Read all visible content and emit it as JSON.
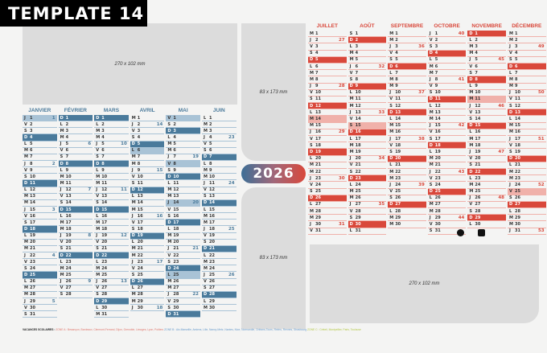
{
  "template_label": "TEMPLATE 14",
  "year": "2026",
  "placeholders": {
    "top_left": "270 x 102 mm",
    "middle_top": "83 x 173 mm",
    "middle_bottom": "83 x 173 mm",
    "bottom_right": "270 x 102 mm"
  },
  "day_letters": [
    "L",
    "M",
    "M",
    "J",
    "V",
    "S",
    "D"
  ],
  "colors": {
    "first_half": "#4a7a9b",
    "first_half_light": "#a9c3d6",
    "second_half": "#d9483b",
    "second_half_light": "#f0b1aa"
  },
  "first_half": [
    {
      "name": "JANVIER 2026",
      "days": 31
    },
    {
      "name": "FÉVRIER",
      "days": 28
    },
    {
      "name": "MARS",
      "days": 31
    },
    {
      "name": "AVRIL",
      "days": 30
    },
    {
      "name": "MAI",
      "days": 31
    },
    {
      "name": "JUIN",
      "days": 30
    }
  ],
  "second_half": [
    {
      "name": "JUILLET",
      "days": 31
    },
    {
      "name": "AOÛT",
      "days": 31
    },
    {
      "name": "SEPTEMBRE",
      "days": 30
    },
    {
      "name": "OCTOBRE",
      "days": 31
    },
    {
      "name": "NOVEMBRE",
      "days": 30
    },
    {
      "name": "DÉCEMBRE",
      "days": 31
    }
  ],
  "holidays": [
    "1-1",
    "4-6",
    "5-1",
    "5-8",
    "5-14",
    "5-25",
    "7-14",
    "8-15",
    "11-1",
    "11-11",
    "12-25"
  ],
  "footer": {
    "label": "VACANCES SCOLAIRES :",
    "zone_a": "ZONE A : Besançon, Bordeaux, Clermont-Ferrand, Dijon, Grenoble, Limoges, Lyon, Poitiers",
    "zone_b": "ZONE B : Aix-Marseille, Amiens, Lille, Nancy-Metz, Nantes, Nice, Normandie, Orléans-Tours, Reims, Rennes, Strasbourg",
    "zone_c": "ZONE C : Créteil, Montpellier, Paris, Toulouse"
  }
}
